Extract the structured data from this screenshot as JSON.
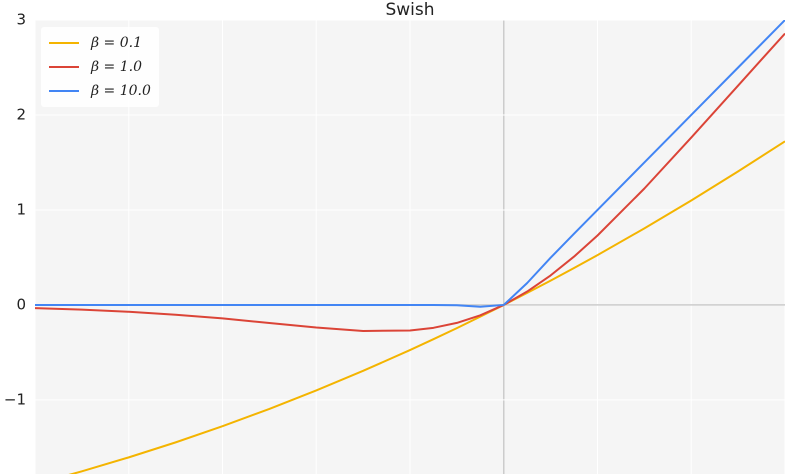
{
  "chart_data": {
    "type": "line",
    "title": "Swish",
    "x": [
      -5,
      -4.5,
      -4,
      -3.5,
      -3,
      -2.5,
      -2,
      -1.5,
      -1,
      -0.75,
      -0.5,
      -0.25,
      0,
      0.25,
      0.5,
      0.75,
      1,
      1.5,
      2,
      2.5,
      3
    ],
    "series": [
      {
        "name": "β = 0.1",
        "color": "#f4b400",
        "values": [
          -1.888,
          -1.752,
          -1.605,
          -1.447,
          -1.277,
          -1.095,
          -0.9,
          -0.694,
          -0.475,
          -0.361,
          -0.244,
          -0.123,
          0,
          0.127,
          0.256,
          0.389,
          0.525,
          0.806,
          1.1,
          1.406,
          1.723
        ]
      },
      {
        "name": "β = 1.0",
        "color": "#db4437",
        "values": [
          -0.033,
          -0.049,
          -0.072,
          -0.103,
          -0.142,
          -0.19,
          -0.238,
          -0.274,
          -0.269,
          -0.241,
          -0.189,
          -0.109,
          0,
          0.141,
          0.311,
          0.509,
          0.731,
          1.226,
          1.762,
          2.31,
          2.858
        ]
      },
      {
        "name": "β = 10.0",
        "color": "#4285f4",
        "values": [
          0,
          0,
          0,
          0,
          0,
          0,
          0,
          0,
          0,
          0,
          -0.003,
          -0.019,
          0,
          0.231,
          0.497,
          0.75,
          1,
          1.5,
          2,
          2.5,
          3
        ]
      }
    ],
    "xlim": [
      -5,
      3
    ],
    "xticks": [
      -5,
      -4,
      -3,
      -2,
      -1,
      0,
      1,
      2,
      3
    ],
    "ylim": [
      -1.78,
      3
    ],
    "yticks": [
      {
        "value": -1,
        "label": "−1"
      },
      0,
      1,
      2,
      3
    ],
    "grid": true,
    "legend": "upper-left"
  }
}
